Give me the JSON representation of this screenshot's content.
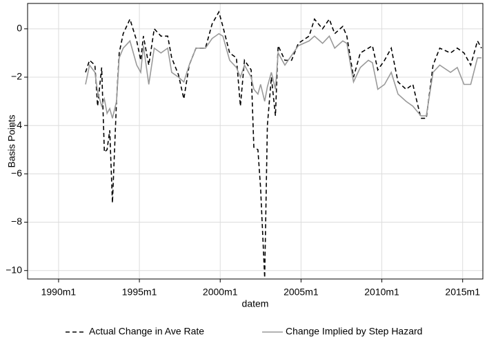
{
  "chart_data": {
    "type": "line",
    "y_label": "Basis Points",
    "x_label": "datem",
    "x": [
      "1991m9",
      "1991m12",
      "1992m4",
      "1992m6",
      "1992m9",
      "1992m11",
      "1993m1",
      "1993m3",
      "1993m5",
      "1993m8",
      "1993m10",
      "1994m1",
      "1994m6",
      "1994m11",
      "1995m2",
      "1995m4",
      "1995m8",
      "1995m12",
      "1996m5",
      "1996m10",
      "1997m1",
      "1997m6",
      "1997m10",
      "1998m2",
      "1998m7",
      "1999m2",
      "1999m7",
      "1999m12",
      "2000m3",
      "2000m8",
      "2001m1",
      "2001m4",
      "2001m7",
      "2001m12",
      "2002m2",
      "2002m5",
      "2002m7",
      "2002m10",
      "2002m12",
      "2003m3",
      "2003m6",
      "2003m8",
      "2004m1",
      "2004m6",
      "2004m11",
      "2005m7",
      "2005m11",
      "2006m5",
      "2006m10",
      "2007m2",
      "2007m8",
      "2007m11",
      "2008m4",
      "2008m9",
      "2009m3",
      "2009m6",
      "2009m10",
      "2010m3",
      "2010m8",
      "2011m1",
      "2011m7",
      "2011m12",
      "2012m6",
      "2012m10",
      "2013m3",
      "2013m8",
      "2014m4",
      "2014m9",
      "2015m2",
      "2015m7",
      "2015m12",
      "2016m3"
    ],
    "series": [
      {
        "name": "Actual Change in Ave Rate",
        "color": "#000000",
        "dash": "6,4",
        "values": [
          -1.8,
          -1.3,
          -1.5,
          -3.2,
          -1.6,
          -5.1,
          -5.0,
          -4.2,
          -7.2,
          -3.0,
          -1.0,
          -0.2,
          0.4,
          -0.5,
          -1.3,
          -0.3,
          -1.5,
          0.0,
          -0.3,
          -0.3,
          -1.2,
          -1.9,
          -2.9,
          -1.5,
          -0.8,
          -0.8,
          0.2,
          0.7,
          0.1,
          -1.0,
          -1.2,
          -3.2,
          -1.3,
          -1.7,
          -4.9,
          -5.0,
          -6.6,
          -10.3,
          -4.0,
          -2.0,
          -3.6,
          -0.7,
          -1.3,
          -1.3,
          -0.6,
          -0.3,
          0.4,
          0.0,
          0.4,
          -0.2,
          0.1,
          -0.3,
          -2.0,
          -1.0,
          -0.8,
          -0.7,
          -1.7,
          -1.3,
          -0.8,
          -2.2,
          -2.5,
          -2.3,
          -3.7,
          -3.7,
          -1.5,
          -0.8,
          -1.0,
          -0.8,
          -1.0,
          -1.5,
          -0.5,
          -0.8
        ]
      },
      {
        "name": "Change Implied by Step Hazard",
        "color": "#999999",
        "dash": "none",
        "values": [
          -2.3,
          -1.5,
          -1.8,
          -2.6,
          -3.2,
          -2.9,
          -3.5,
          -3.3,
          -3.7,
          -3.0,
          -1.2,
          -0.8,
          -0.5,
          -1.5,
          -1.8,
          -0.7,
          -2.3,
          -0.8,
          -1.0,
          -0.8,
          -1.8,
          -2.0,
          -2.2,
          -1.5,
          -0.8,
          -0.8,
          -0.4,
          -0.2,
          -0.3,
          -1.3,
          -1.6,
          -2.0,
          -1.5,
          -2.0,
          -2.5,
          -2.7,
          -2.3,
          -3.0,
          -2.4,
          -1.8,
          -2.5,
          -1.0,
          -1.5,
          -1.1,
          -0.7,
          -0.5,
          -0.3,
          -0.6,
          -0.3,
          -0.8,
          -0.5,
          -0.6,
          -2.2,
          -1.6,
          -1.3,
          -1.4,
          -2.5,
          -2.3,
          -1.8,
          -2.7,
          -3.0,
          -3.2,
          -3.6,
          -3.6,
          -1.8,
          -1.5,
          -1.8,
          -1.6,
          -2.3,
          -2.3,
          -1.2,
          -1.2
        ]
      }
    ],
    "xlim": [
      "1988m2",
      "2016m4"
    ],
    "xticks": [
      "1990m1",
      "1995m1",
      "2000m1",
      "2005m1",
      "2010m1",
      "2015m1"
    ],
    "ylim": [
      -10.35,
      1.05
    ],
    "yticks": [
      {
        "value": -10,
        "label": "−10"
      },
      {
        "value": -8,
        "label": "−8"
      },
      {
        "value": -6,
        "label": "−6"
      },
      {
        "value": -4,
        "label": "−4"
      },
      {
        "value": -2,
        "label": "−2"
      },
      0
    ],
    "grid": true,
    "legend": "bottom"
  }
}
